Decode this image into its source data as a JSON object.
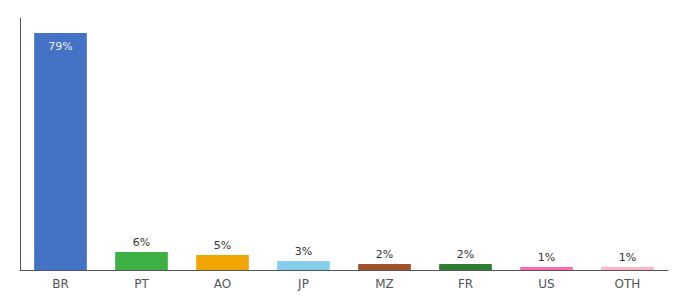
{
  "chart_data": {
    "type": "bar",
    "categories": [
      "BR",
      "PT",
      "AO",
      "JP",
      "MZ",
      "FR",
      "US",
      "OTH"
    ],
    "values": [
      79,
      6,
      5,
      3,
      2,
      2,
      1,
      1
    ],
    "value_labels": [
      "79%",
      "6%",
      "5%",
      "3%",
      "2%",
      "2%",
      "1%",
      "1%"
    ],
    "colors": [
      "#4472C4",
      "#3CB043",
      "#F0A500",
      "#87CEEB",
      "#A0522D",
      "#2E7D32",
      "#FF69B4",
      "#FFB6C1"
    ],
    "ylim": [
      0,
      84
    ],
    "grid": false,
    "data_labels": true,
    "tick_labels": "x"
  }
}
